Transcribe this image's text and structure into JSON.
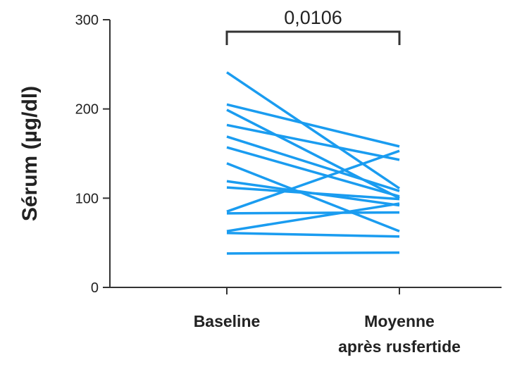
{
  "chart_data": {
    "type": "line",
    "title": "",
    "xlabel": "",
    "ylabel": "Sérum (µg/dl)",
    "categories": [
      {
        "lines": [
          "Baseline"
        ]
      },
      {
        "lines": [
          "Moyenne",
          "après rusfertide"
        ]
      }
    ],
    "yticks": [
      0,
      100,
      200,
      300
    ],
    "ylim": [
      0,
      300
    ],
    "grid": false,
    "line_color": "#1a9cf0",
    "annotation": {
      "text": "0,0106",
      "type": "bracket"
    },
    "series": [
      {
        "values": [
          241,
          111
        ]
      },
      {
        "values": [
          205,
          158
        ]
      },
      {
        "values": [
          199,
          100
        ]
      },
      {
        "values": [
          182,
          143
        ]
      },
      {
        "values": [
          169,
          108
        ]
      },
      {
        "values": [
          157,
          102
        ]
      },
      {
        "values": [
          139,
          63
        ]
      },
      {
        "values": [
          119,
          92
        ]
      },
      {
        "values": [
          112,
          99
        ]
      },
      {
        "values": [
          85,
          153
        ]
      },
      {
        "values": [
          83,
          84
        ]
      },
      {
        "values": [
          63,
          94
        ]
      },
      {
        "values": [
          61,
          57
        ]
      },
      {
        "values": [
          38,
          39
        ]
      }
    ]
  }
}
